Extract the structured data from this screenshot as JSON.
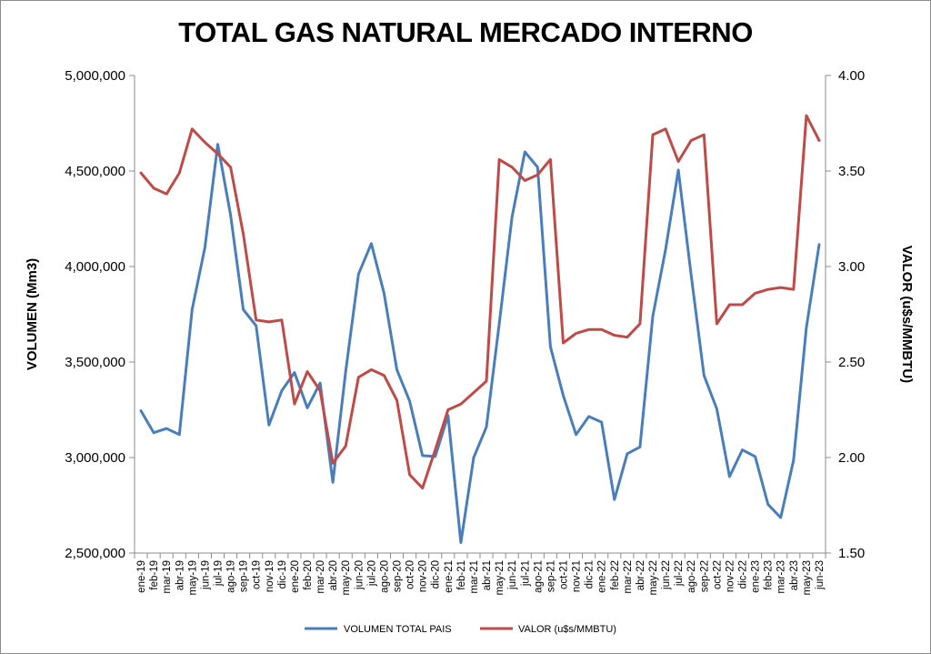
{
  "chart_data": {
    "type": "line",
    "title": "TOTAL GAS NATURAL MERCADO INTERNO",
    "ylabel_left": "VOLUMEN (Mm3)",
    "ylabel_right": "VALOR (u$s/MMBTU)",
    "ylim_left": [
      2500000,
      5000000
    ],
    "ylim_right": [
      1.5,
      4.0
    ],
    "yticks_left": [
      "2,500,000",
      "3,000,000",
      "3,500,000",
      "4,000,000",
      "4,500,000",
      "5,000,000"
    ],
    "yticks_right": [
      "1.50",
      "2.00",
      "2.50",
      "3.00",
      "3.50",
      "4.00"
    ],
    "grid": false,
    "legend_position": "bottom",
    "categories": [
      "ene-19",
      "feb-19",
      "mar-19",
      "abr-19",
      "may-19",
      "jun-19",
      "jul-19",
      "ago-19",
      "sep-19",
      "oct-19",
      "nov-19",
      "dic-19",
      "ene-20",
      "feb-20",
      "mar-20",
      "abr-20",
      "may-20",
      "jun-20",
      "jul-20",
      "ago-20",
      "sep-20",
      "oct-20",
      "nov-20",
      "dic-20",
      "ene-21",
      "feb-21",
      "mar-21",
      "abr-21",
      "may-21",
      "jun-21",
      "jul-21",
      "ago-21",
      "sep-21",
      "oct-21",
      "nov-21",
      "dic-21",
      "ene-22",
      "feb-22",
      "mar-22",
      "abr-22",
      "may-22",
      "jun-22",
      "jul-22",
      "ago-22",
      "sep-22",
      "oct-22",
      "nov-22",
      "dic-22",
      "ene-23",
      "feb-23",
      "mar-23",
      "abr-23",
      "may-23",
      "jun-23"
    ],
    "series": [
      {
        "name": "VOLUMEN TOTAL PAIS",
        "axis": "left",
        "color": "#4a7ebb",
        "values": [
          3245000,
          3130000,
          3152000,
          3120000,
          3775000,
          4100000,
          4640000,
          4270000,
          3775000,
          3690000,
          3170000,
          3350000,
          3445000,
          3260000,
          3390000,
          2870000,
          3450000,
          3960000,
          4120000,
          3860000,
          3460000,
          3295000,
          3010000,
          3005000,
          3220000,
          2555000,
          3000000,
          3160000,
          3700000,
          4260000,
          4600000,
          4520000,
          3580000,
          3325000,
          3120000,
          3215000,
          3185000,
          2780000,
          3020000,
          3055000,
          3740000,
          4090000,
          4505000,
          3955000,
          3430000,
          3255000,
          2900000,
          3040000,
          3005000,
          2755000,
          2685000,
          2985000,
          3680000,
          4115000
        ]
      },
      {
        "name": "VALOR (u$s/MMBTU)",
        "axis": "right",
        "color": "#be4b48",
        "values": [
          3.49,
          3.41,
          3.38,
          3.49,
          3.72,
          3.65,
          3.59,
          3.52,
          3.17,
          2.72,
          2.71,
          2.72,
          2.28,
          2.45,
          2.35,
          1.97,
          2.06,
          2.42,
          2.46,
          2.43,
          2.3,
          1.91,
          1.84,
          2.04,
          2.25,
          2.28,
          2.34,
          2.4,
          3.56,
          3.52,
          3.45,
          3.48,
          3.56,
          2.6,
          2.65,
          2.67,
          2.67,
          2.64,
          2.63,
          2.7,
          3.69,
          3.72,
          3.55,
          3.66,
          3.69,
          2.7,
          2.8,
          2.8,
          2.86,
          2.88,
          2.89,
          2.88,
          3.79,
          3.66
        ]
      }
    ]
  }
}
